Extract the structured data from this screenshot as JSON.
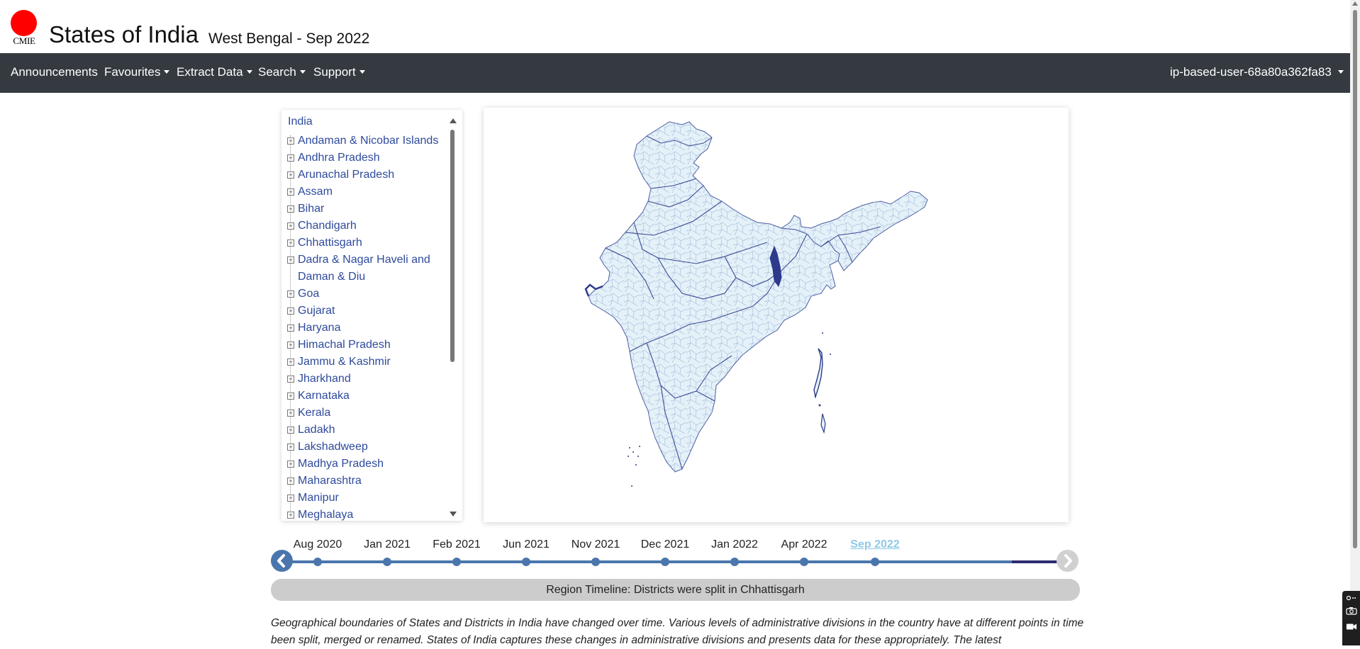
{
  "header": {
    "logo_text": "CMIE",
    "site_title": "States of India",
    "page_subtitle": "West Bengal - Sep 2022"
  },
  "navbar": {
    "items": [
      {
        "label": "Announcements",
        "dropdown": false
      },
      {
        "label": "Favourites",
        "dropdown": true
      },
      {
        "label": "Extract Data",
        "dropdown": true
      },
      {
        "label": "Search",
        "dropdown": true
      },
      {
        "label": "Support",
        "dropdown": true
      }
    ],
    "user": "ip-based-user-68a80a362fa83"
  },
  "tree": {
    "root": "India",
    "items": [
      "Andaman & Nicobar Islands",
      "Andhra Pradesh",
      "Arunachal Pradesh",
      "Assam",
      "Bihar",
      "Chandigarh",
      "Chhattisgarh",
      "Dadra & Nagar Haveli and Daman & Diu",
      "Goa",
      "Gujarat",
      "Haryana",
      "Himachal Pradesh",
      "Jammu & Kashmir",
      "Jharkhand",
      "Karnataka",
      "Kerala",
      "Ladakh",
      "Lakshadweep",
      "Madhya Pradesh",
      "Maharashtra",
      "Manipur",
      "Meghalaya"
    ]
  },
  "map": {
    "fill_color": "#e4f1f8",
    "border_color": "#9fb3d6",
    "highlight_color": "#2d3a8c"
  },
  "timeline": {
    "dates": [
      "Aug 2020",
      "Jan 2021",
      "Feb 2021",
      "Jun 2021",
      "Nov 2021",
      "Dec 2021",
      "Jan 2022",
      "Apr 2022",
      "Sep 2022"
    ],
    "active": "Sep 2022",
    "line_color": "#4a76ad"
  },
  "region_timeline": "Region Timeline: Districts were split in Chhattisgarh",
  "description": "Geographical boundaries of States and Districts in India have changed over time. Various levels of administrative divisions in the country have at different points in time been split, merged or renamed. States of India captures these changes in administrative divisions and presents data for these appropriately. The latest"
}
